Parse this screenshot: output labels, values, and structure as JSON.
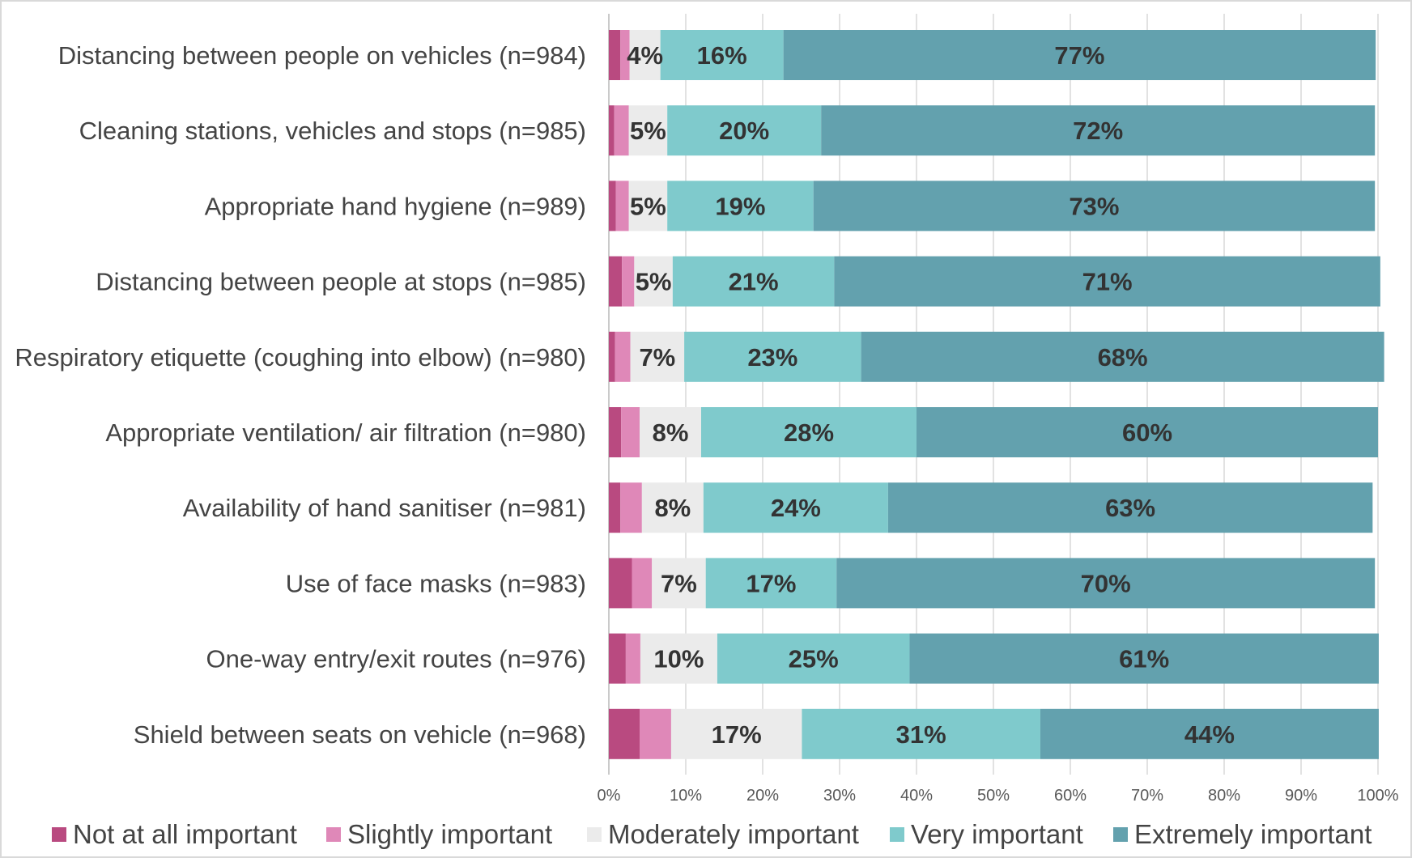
{
  "chart_data": {
    "type": "bar",
    "orientation": "horizontal",
    "stacked": true,
    "categories": [
      "Distancing between people on vehicles (n=984)",
      "Cleaning stations, vehicles and stops (n=985)",
      "Appropriate hand hygiene (n=989)",
      "Distancing between people at stops (n=985)",
      "Respiratory etiquette (coughing into elbow) (n=980)",
      "Appropriate ventilation/ air filtration (n=980)",
      "Availability of hand sanitiser (n=981)",
      "Use of face masks (n=983)",
      "One-way entry/exit routes (n=976)",
      "Shield between seats on vehicle (n=968)"
    ],
    "series": [
      {
        "name": "Not at all important",
        "color": "#b94a80",
        "values": [
          1.5,
          0.7,
          0.9,
          1.7,
          0.8,
          1.6,
          1.5,
          3.0,
          2.2,
          4.0
        ]
      },
      {
        "name": "Slightly important",
        "color": "#df88b8",
        "values": [
          1.2,
          1.9,
          1.7,
          1.6,
          2.0,
          2.4,
          2.8,
          2.6,
          1.9,
          4.1
        ]
      },
      {
        "name": "Moderately important",
        "color": "#ebebeb",
        "values": [
          4,
          5,
          5,
          5,
          7,
          8,
          8,
          7,
          10,
          17
        ]
      },
      {
        "name": "Very important",
        "color": "#7fcacc",
        "values": [
          16,
          20,
          19,
          21,
          23,
          28,
          24,
          17,
          25,
          31
        ]
      },
      {
        "name": "Extremely important",
        "color": "#63a1ae",
        "values": [
          77,
          72,
          73,
          71,
          68,
          60,
          63,
          70,
          61,
          44
        ]
      }
    ],
    "data_labels": [
      [
        "",
        "",
        "4%",
        "16%",
        "77%"
      ],
      [
        "",
        "",
        "5%",
        "20%",
        "72%"
      ],
      [
        "",
        "",
        "5%",
        "19%",
        "73%"
      ],
      [
        "",
        "",
        "5%",
        "21%",
        "71%"
      ],
      [
        "",
        "",
        "7%",
        "23%",
        "68%"
      ],
      [
        "",
        "",
        "8%",
        "28%",
        "60%"
      ],
      [
        "",
        "",
        "8%",
        "24%",
        "63%"
      ],
      [
        "",
        "",
        "7%",
        "17%",
        "70%"
      ],
      [
        "",
        "",
        "10%",
        "25%",
        "61%"
      ],
      [
        "",
        "",
        "17%",
        "31%",
        "44%"
      ]
    ],
    "xlim": [
      0,
      100
    ],
    "xticks": [
      "0%",
      "10%",
      "20%",
      "30%",
      "40%",
      "50%",
      "60%",
      "70%",
      "80%",
      "90%",
      "100%"
    ],
    "grid": true,
    "legend_position": "bottom",
    "title": "",
    "xlabel": "",
    "ylabel": ""
  }
}
